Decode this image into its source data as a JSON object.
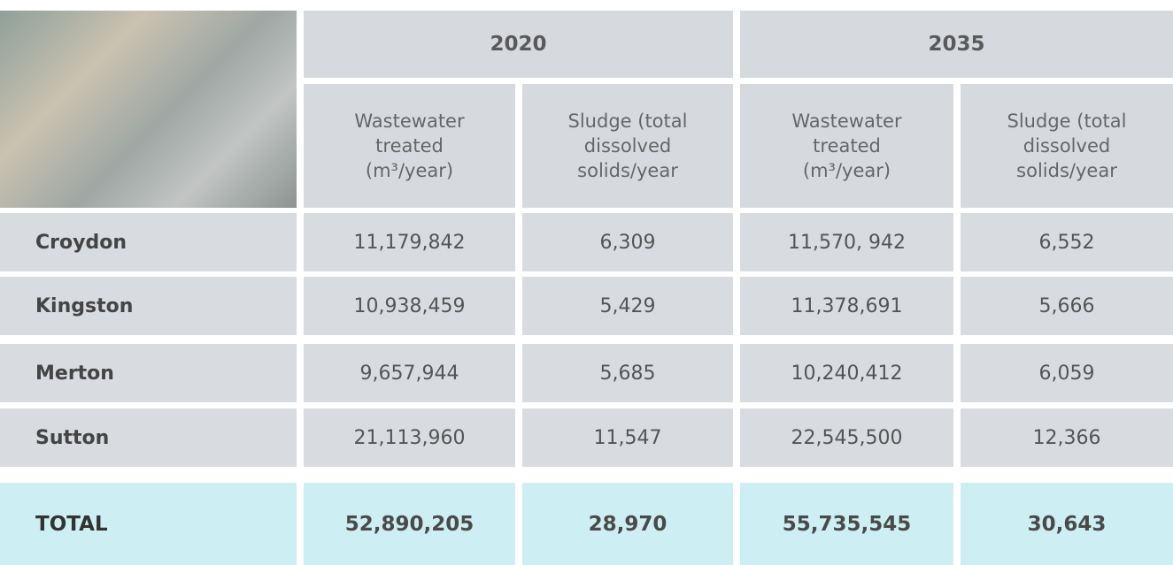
{
  "table": {
    "years": [
      "2020",
      "2035"
    ],
    "column_headers": [
      "Wastewater treated (m³/year)",
      "Sludge (total dissolved solids/year",
      "Wastewater treated (m³/year)",
      "Sludge (total dissolved solids/year"
    ],
    "rows": [
      {
        "label": "Croydon",
        "values": [
          "11,179,842",
          "6,309",
          "11,570, 942",
          "6,552"
        ]
      },
      {
        "label": "Kingston",
        "values": [
          "10,938,459",
          "5,429",
          "11,378,691",
          "5,666"
        ]
      },
      {
        "label": "Merton",
        "values": [
          "9,657,944",
          "5,685",
          "10,240,412",
          "6,059"
        ]
      },
      {
        "label": "Sutton",
        "values": [
          "21,113,960",
          "11,547",
          "22,545,500",
          "12,366"
        ]
      }
    ],
    "total": {
      "label": "TOTAL",
      "values": [
        "52,890,205",
        "28,970",
        "55,735,545",
        "30,643"
      ]
    }
  }
}
